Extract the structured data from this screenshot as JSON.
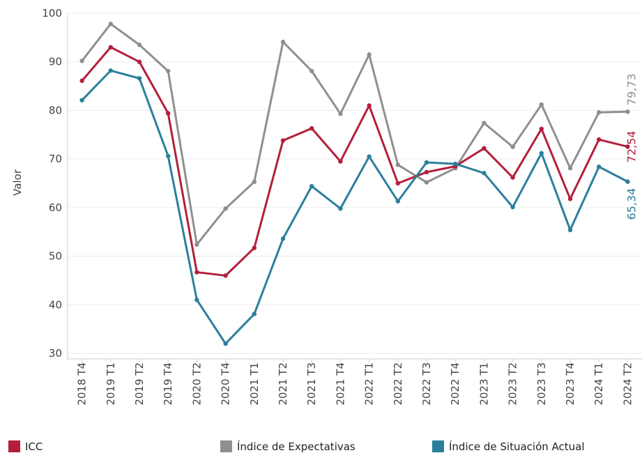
{
  "chart_data": {
    "type": "line",
    "y_label": "Valor",
    "categories": [
      "2018 T4",
      "2019 T1",
      "2019 T2",
      "2019 T4",
      "2020 T2",
      "2020 T4",
      "2021 T1",
      "2021 T2",
      "2021 T3",
      "2021 T4",
      "2022 T1",
      "2022 T2",
      "2022 T3",
      "2022 T4",
      "2023 T1",
      "2023 T2",
      "2023 T3",
      "2023 T4",
      "2024 T1",
      "2024 T2"
    ],
    "series": [
      {
        "name": "ICC",
        "color": "#b31f3b",
        "values": [
          86.1,
          93,
          90,
          79.4,
          46.7,
          46,
          51.7,
          73.8,
          76.3,
          69.5,
          81,
          65,
          67.3,
          68.5,
          72.2,
          66.2,
          76.2,
          61.8,
          74,
          72.54
        ],
        "value_labels": [
          null,
          null,
          null,
          null,
          null,
          null,
          null,
          null,
          null,
          null,
          null,
          null,
          null,
          null,
          null,
          null,
          null,
          null,
          null,
          "72,54"
        ]
      },
      {
        "name": "Índice de Expectativas",
        "color": "#8f8f8f",
        "values": [
          90.2,
          97.8,
          93.5,
          88.1,
          52.4,
          59.8,
          65.3,
          94.1,
          88.1,
          79.3,
          91.5,
          68.8,
          65.2,
          68.1,
          77.4,
          72.5,
          81.2,
          68.1,
          79.6,
          79.73
        ],
        "value_labels": [
          null,
          null,
          null,
          null,
          null,
          null,
          null,
          null,
          null,
          null,
          null,
          null,
          null,
          null,
          null,
          null,
          null,
          null,
          null,
          "79,73"
        ]
      },
      {
        "name": "Índice de Situación Actual",
        "color": "#2a7f9c",
        "values": [
          82.1,
          88.2,
          86.6,
          70.6,
          41,
          32,
          38.1,
          53.6,
          64.4,
          59.8,
          70.5,
          61.3,
          69.3,
          69,
          67.1,
          60.1,
          71.2,
          55.4,
          68.4,
          65.34
        ],
        "value_labels": [
          null,
          null,
          null,
          null,
          null,
          null,
          null,
          null,
          null,
          null,
          null,
          null,
          null,
          null,
          null,
          null,
          null,
          null,
          null,
          "65,34"
        ]
      }
    ],
    "ylim": [
      30,
      100
    ],
    "yticks": [
      30,
      40,
      50,
      60,
      70,
      80,
      90,
      100
    ],
    "grid": true
  }
}
